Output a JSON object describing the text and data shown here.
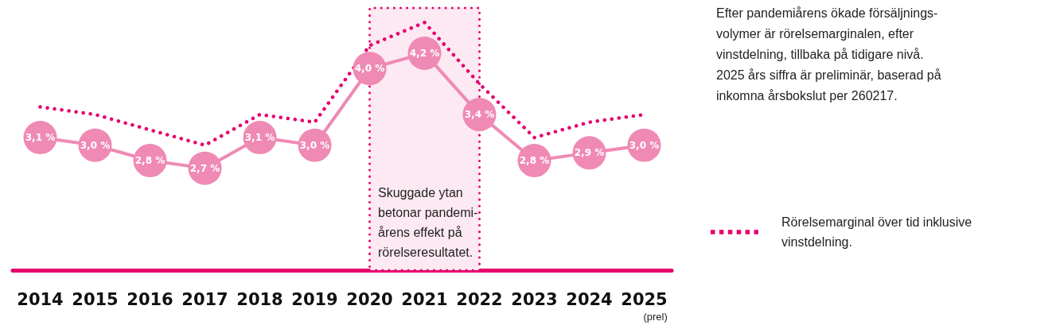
{
  "chart_data": {
    "type": "line",
    "categories": [
      "2014",
      "2015",
      "2016",
      "2017",
      "2018",
      "2019",
      "2020",
      "2021",
      "2022",
      "2023",
      "2024",
      "2025 (prel)"
    ],
    "series": [
      {
        "color": "#ef8ab4",
        "values": [
          3.1,
          3.0,
          2.8,
          2.7,
          3.1,
          3.0,
          4.0,
          4.2,
          3.4,
          2.8,
          2.9,
          3.0
        ],
        "value_labels": [
          "3,1 %",
          "3,0 %",
          "2,8 %",
          "2,7 %",
          "3,1 %",
          "3,0 %",
          "4,0 %",
          "4,2 %",
          "3,4 %",
          "2,8 %",
          "2,9 %",
          "3,0 %"
        ],
        "marker": "circle",
        "line_style": "solid"
      },
      {
        "name": "Rörelsemarginal över tid inklusive vinstdelning.",
        "color": "#e5006d",
        "values": [
          3.5,
          3.4,
          3.2,
          3.0,
          3.4,
          3.3,
          4.3,
          4.6,
          3.8,
          3.1,
          3.3,
          3.4
        ],
        "marker": "none",
        "line_style": "dotted"
      }
    ],
    "tick_labels": "x",
    "grid": false,
    "legend": "right",
    "bands": [
      {
        "axis": "x",
        "from": "2020",
        "to": "2022",
        "label": "Skuggade ytan\nbetonar pandemi-\nårens effekt på\nrörelseresultatet.",
        "color": "#fce9f2"
      }
    ],
    "annotations": [
      "Efter pandemiårens ökade försäljnings-\nvolymer är rörelsemarginalen, efter\nvinstdelning, tillbaka på tidigare nivå.\n2025 års siffra är preliminär, baserad på\ninkomna årsbokslut per 260217."
    ]
  }
}
